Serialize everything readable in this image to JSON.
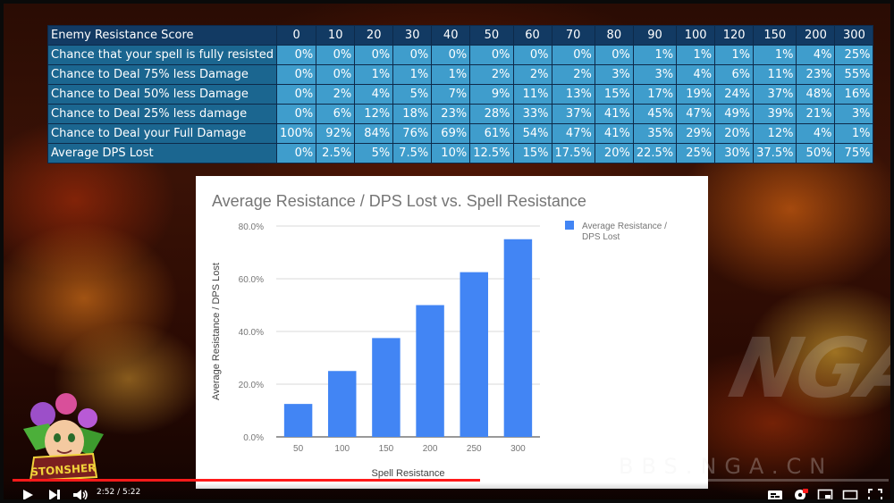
{
  "table": {
    "corner_label": "Enemy Resistance Score",
    "columns": [
      "0",
      "10",
      "20",
      "30",
      "40",
      "50",
      "60",
      "70",
      "80",
      "90",
      "100",
      "120",
      "150",
      "200",
      "300"
    ],
    "rows": [
      {
        "label": "Chance that your spell is fully resisted",
        "values": [
          "0%",
          "0%",
          "0%",
          "0%",
          "0%",
          "0%",
          "0%",
          "0%",
          "0%",
          "1%",
          "1%",
          "1%",
          "1%",
          "4%",
          "25%"
        ]
      },
      {
        "label": "Chance to Deal 75% less Damage",
        "values": [
          "0%",
          "0%",
          "1%",
          "1%",
          "1%",
          "2%",
          "2%",
          "2%",
          "3%",
          "3%",
          "4%",
          "6%",
          "11%",
          "23%",
          "55%"
        ]
      },
      {
        "label": "Chance to Deal 50% less Damage",
        "values": [
          "0%",
          "2%",
          "4%",
          "5%",
          "7%",
          "9%",
          "11%",
          "13%",
          "15%",
          "17%",
          "19%",
          "24%",
          "37%",
          "48%",
          "16%"
        ]
      },
      {
        "label": "Chance to Deal 25% less damage",
        "values": [
          "0%",
          "6%",
          "12%",
          "18%",
          "23%",
          "28%",
          "33%",
          "37%",
          "41%",
          "45%",
          "47%",
          "49%",
          "39%",
          "21%",
          "3%"
        ]
      },
      {
        "label": "Chance to Deal your Full Damage",
        "values": [
          "100%",
          "92%",
          "84%",
          "76%",
          "69%",
          "61%",
          "54%",
          "47%",
          "41%",
          "35%",
          "29%",
          "20%",
          "12%",
          "4%",
          "1%"
        ]
      },
      {
        "label": "Average DPS Lost",
        "values": [
          "0%",
          "2.5%",
          "5%",
          "7.5%",
          "10%",
          "12.5%",
          "15%",
          "17.5%",
          "20%",
          "22.5%",
          "25%",
          "30%",
          "37.5%",
          "50%",
          "75%"
        ]
      }
    ]
  },
  "chart_data": {
    "type": "bar",
    "title": "Average Resistance / DPS Lost vs. Spell Resistance",
    "xlabel": "Spell Resistance",
    "ylabel": "Average Resistance / DPS Lost",
    "categories": [
      "50",
      "100",
      "150",
      "200",
      "250",
      "300"
    ],
    "series": [
      {
        "name": "Average Resistance / DPS Lost",
        "values": [
          12.5,
          25,
          37.5,
          50,
          62.5,
          75
        ],
        "color": "#4285f4"
      }
    ],
    "ylim": [
      0,
      80
    ],
    "yticks": [
      "0.0%",
      "20.0%",
      "40.0%",
      "60.0%",
      "80.0%"
    ],
    "ytick_values": [
      0,
      20,
      40,
      60,
      80
    ],
    "legend_position": "top-right",
    "grid": true
  },
  "watermark": {
    "logo": "NGA",
    "text": "BBS.NGA.CN"
  },
  "emblem": {
    "text": "STONSHER"
  },
  "player": {
    "current_time": "2:52",
    "duration": "5:22",
    "progress": 0.534,
    "accent": "#ff1a1a"
  }
}
